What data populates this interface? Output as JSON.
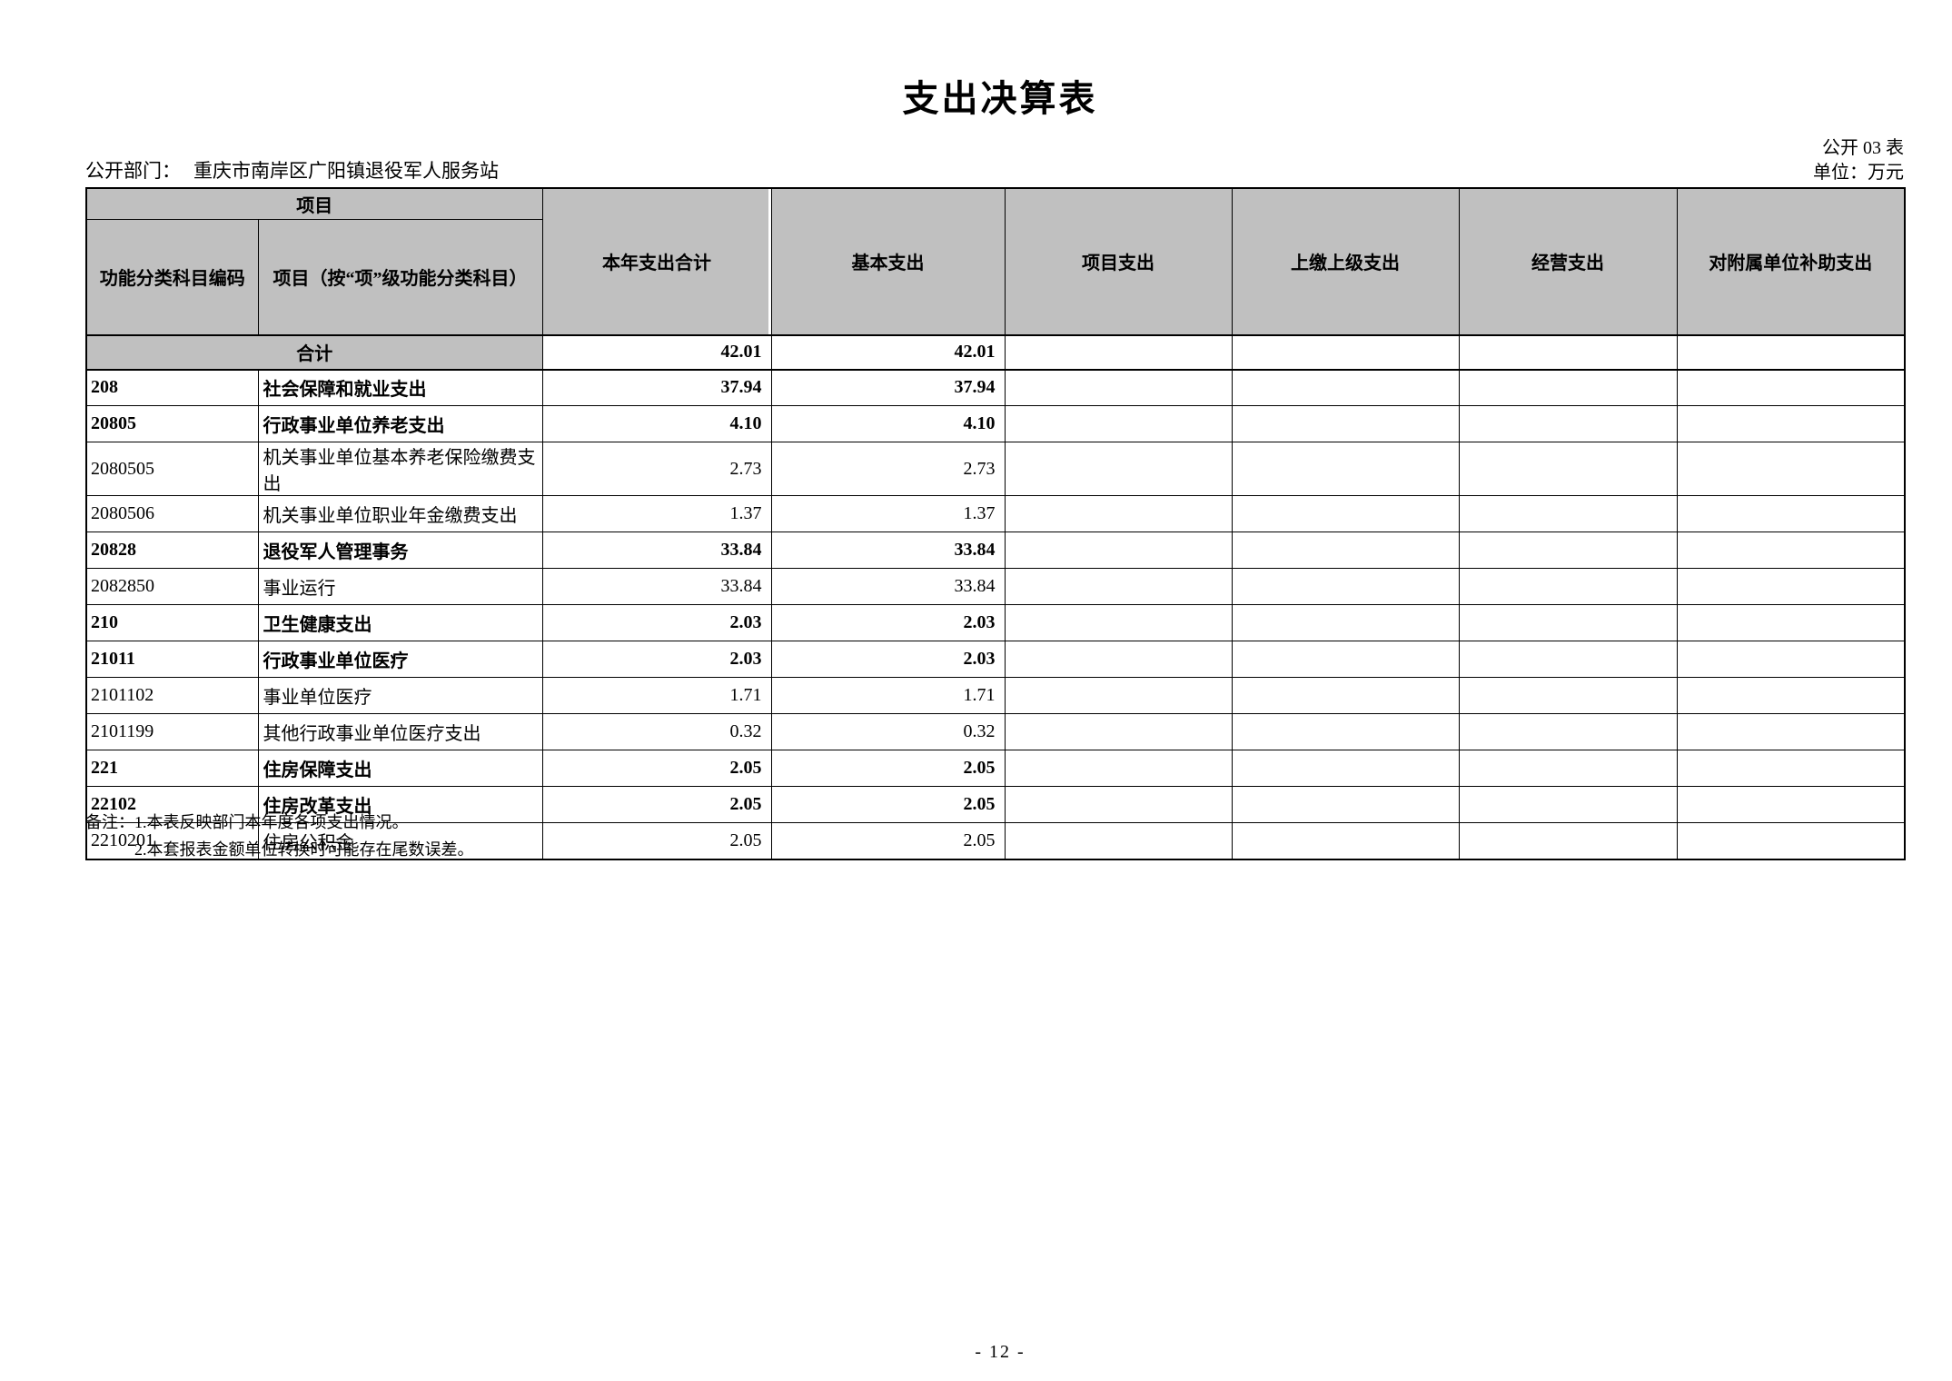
{
  "doc": {
    "title": "支出决算表",
    "table_code": "公开 03 表",
    "department_label": "公开部门：",
    "department_value": "重庆市南岸区广阳镇退役军人服务站",
    "unit_label": "单位：万元",
    "page_number": "- 12 -"
  },
  "table": {
    "header": {
      "group_label": "项目",
      "code_label": "功能分类科目编码",
      "item_label": "项目（按“项”级功能分类科目）",
      "columns": [
        "本年支出合计",
        "基本支出",
        "项目支出",
        "上缴上级支出",
        "经营支出",
        "对附属单位补助支出"
      ]
    },
    "total_row": {
      "label": "合计",
      "values": [
        "42.01",
        "42.01",
        "",
        "",
        "",
        ""
      ]
    },
    "rows": [
      {
        "code": "208",
        "name": "社会保障和就业支出",
        "bold": true,
        "values": [
          "37.94",
          "37.94",
          "",
          "",
          "",
          ""
        ]
      },
      {
        "code": "20805",
        "name": "行政事业单位养老支出",
        "bold": true,
        "values": [
          "4.10",
          "4.10",
          "",
          "",
          "",
          ""
        ]
      },
      {
        "code": "2080505",
        "name": "机关事业单位基本养老保险缴费支出",
        "bold": false,
        "values": [
          "2.73",
          "2.73",
          "",
          "",
          "",
          ""
        ]
      },
      {
        "code": "2080506",
        "name": "机关事业单位职业年金缴费支出",
        "bold": false,
        "values": [
          "1.37",
          "1.37",
          "",
          "",
          "",
          ""
        ]
      },
      {
        "code": "20828",
        "name": "退役军人管理事务",
        "bold": true,
        "values": [
          "33.84",
          "33.84",
          "",
          "",
          "",
          ""
        ]
      },
      {
        "code": "2082850",
        "name": "事业运行",
        "bold": false,
        "values": [
          "33.84",
          "33.84",
          "",
          "",
          "",
          ""
        ]
      },
      {
        "code": "210",
        "name": "卫生健康支出",
        "bold": true,
        "values": [
          "2.03",
          "2.03",
          "",
          "",
          "",
          ""
        ]
      },
      {
        "code": "21011",
        "name": "行政事业单位医疗",
        "bold": true,
        "values": [
          "2.03",
          "2.03",
          "",
          "",
          "",
          ""
        ]
      },
      {
        "code": "2101102",
        "name": "事业单位医疗",
        "bold": false,
        "values": [
          "1.71",
          "1.71",
          "",
          "",
          "",
          ""
        ]
      },
      {
        "code": "2101199",
        "name": "其他行政事业单位医疗支出",
        "bold": false,
        "values": [
          "0.32",
          "0.32",
          "",
          "",
          "",
          ""
        ]
      },
      {
        "code": "221",
        "name": "住房保障支出",
        "bold": true,
        "values": [
          "2.05",
          "2.05",
          "",
          "",
          "",
          ""
        ]
      },
      {
        "code": "22102",
        "name": "住房改革支出",
        "bold": true,
        "values": [
          "2.05",
          "2.05",
          "",
          "",
          "",
          ""
        ]
      },
      {
        "code": "2210201",
        "name": "住房公积金",
        "bold": false,
        "values": [
          "2.05",
          "2.05",
          "",
          "",
          "",
          ""
        ]
      }
    ]
  },
  "notes": {
    "label": "备注：",
    "lines": [
      "1.本表反映部门本年度各项支出情况。",
      "2.本套报表金额单位转换时可能存在尾数误差。"
    ]
  },
  "colors": {
    "header_bg": "#c0c0c0",
    "border": "#000000"
  }
}
